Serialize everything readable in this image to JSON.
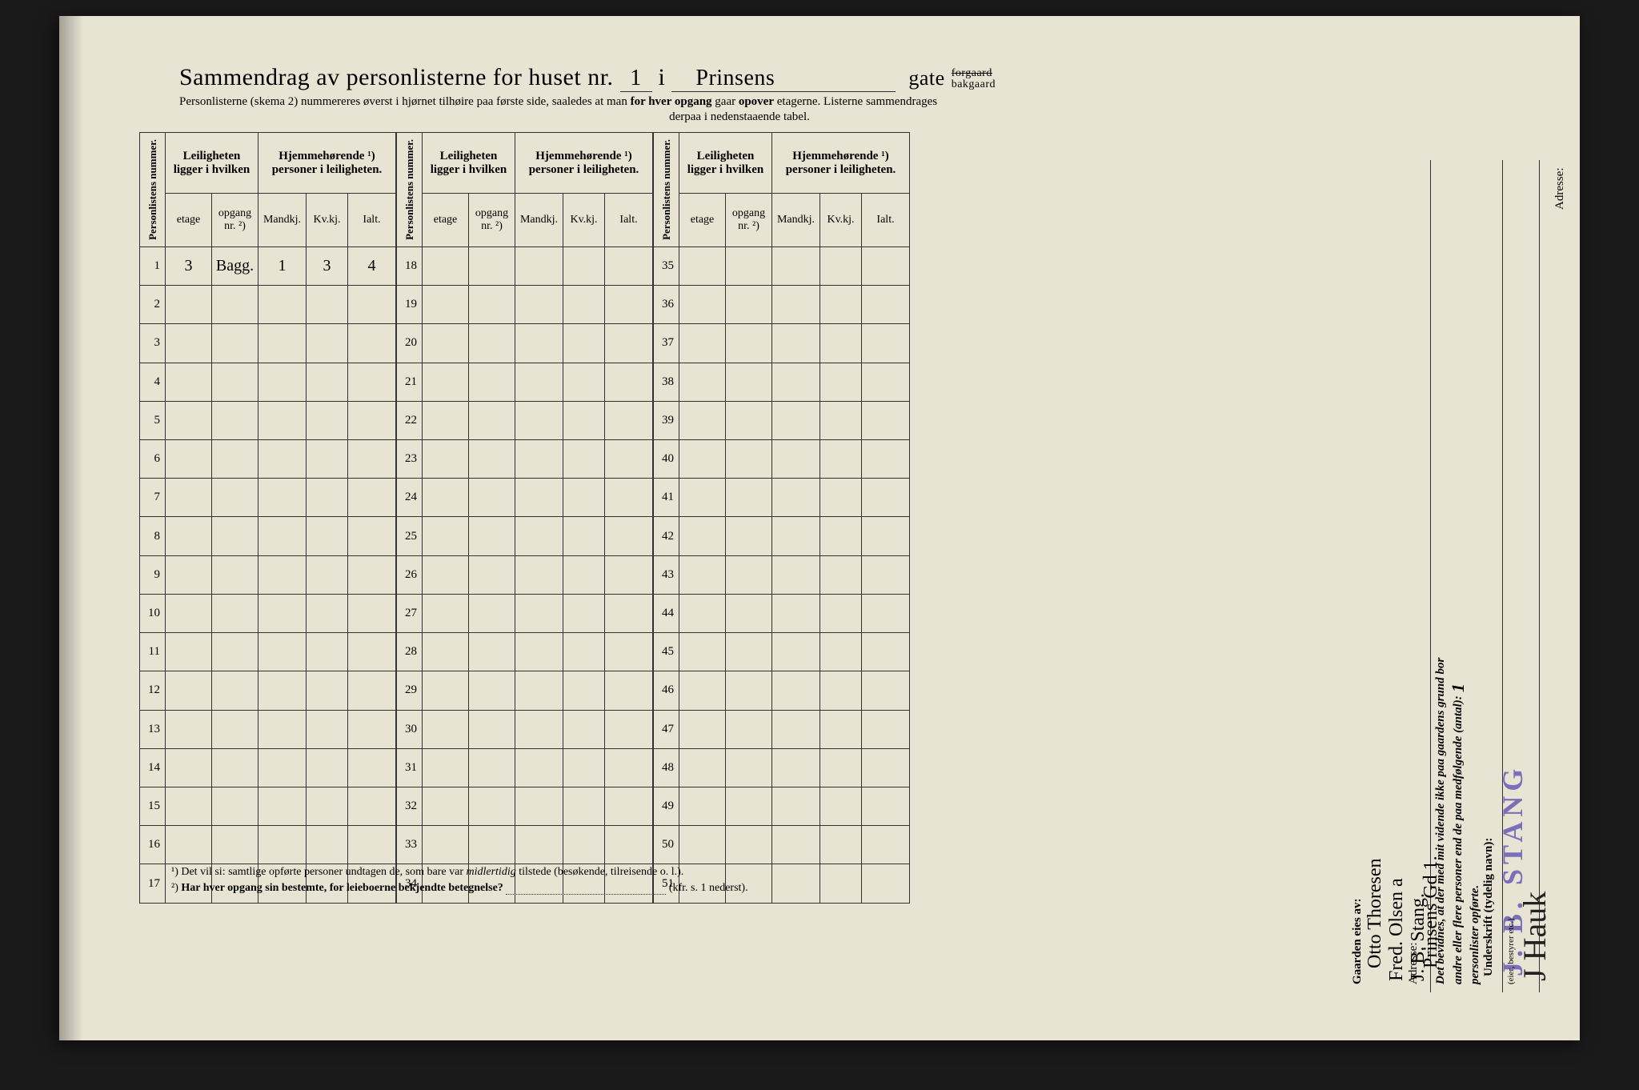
{
  "title": {
    "prefix": "Sammendrag av personlisterne for huset nr.",
    "house_nr": "1",
    "i": "i",
    "street": "Prinsens",
    "gate": "gate",
    "struck_top": "forgaard",
    "struck_bot": "bakgaard"
  },
  "subtitle": {
    "line1a": "Personlisterne (skema 2) nummereres øverst i hjørnet tilhøire paa første side, saaledes at man ",
    "line1b": "for hver opgang",
    "line1c": " gaar ",
    "line1d": "opover",
    "line1e": " etagerne.  Listerne sammendrages",
    "line2": "derpaa i nedenstaaende tabel."
  },
  "headers": {
    "personlistens": "Personlistens nummer.",
    "leiligheten": "Leiligheten ligger i hvilken",
    "hjemme": "Hjemmehørende ¹) personer i leiligheten.",
    "etage": "etage",
    "opgang": "opgang nr. ²)",
    "mandkj": "Mandkj.",
    "kvkj": "Kv.kj.",
    "ialt": "Ialt."
  },
  "row1": {
    "etage": "3",
    "opgang": "Bagg.",
    "mandkj": "1",
    "kvkj": "3",
    "ialt": "4"
  },
  "block1_rows": [
    1,
    2,
    3,
    4,
    5,
    6,
    7,
    8,
    9,
    10,
    11,
    12,
    13,
    14,
    15,
    16,
    17
  ],
  "block2_rows": [
    18,
    19,
    20,
    21,
    22,
    23,
    24,
    25,
    26,
    27,
    28,
    29,
    30,
    31,
    32,
    33,
    34
  ],
  "block3_rows": [
    35,
    36,
    37,
    38,
    39,
    40,
    41,
    42,
    43,
    44,
    45,
    46,
    47,
    48,
    49,
    50,
    51
  ],
  "footnotes": {
    "f1": "¹)  Det vil si: samtlige opførte personer undtagen de, som bare var ",
    "f1i": "midlertidig",
    "f1b": " tilstede (besøkende, tilreisende o. l.).",
    "f2a": "²)  ",
    "f2b": "Har hver opgang sin bestemte, for leieboerne bekjendte betegnelse?",
    "f2c": "(kfr. s. 1 nederst)."
  },
  "sidebar": {
    "gaarden_eies": "Gaarden eies av:",
    "owner1": "Otto Thoresen",
    "owner2": "Fred. Olsen a",
    "owner3": "J. B. Stang.",
    "adresse": "Adresse:",
    "adresse_val": "Prinsens Gd 1.",
    "bevidnes1": "Det bevidnes, at der med mit vidende ikke paa gaardens grund bor",
    "bevidnes2": "andre eller flere personer end de paa medfølgende (antal):",
    "antal": "1",
    "bevidnes3": "personlister opførte.",
    "underskrift": "Underskrift (tydelig navn):",
    "stamp": "J. B. STANG",
    "eier": "(eier, bestyrer etc.)",
    "signature": "J Hauk"
  }
}
